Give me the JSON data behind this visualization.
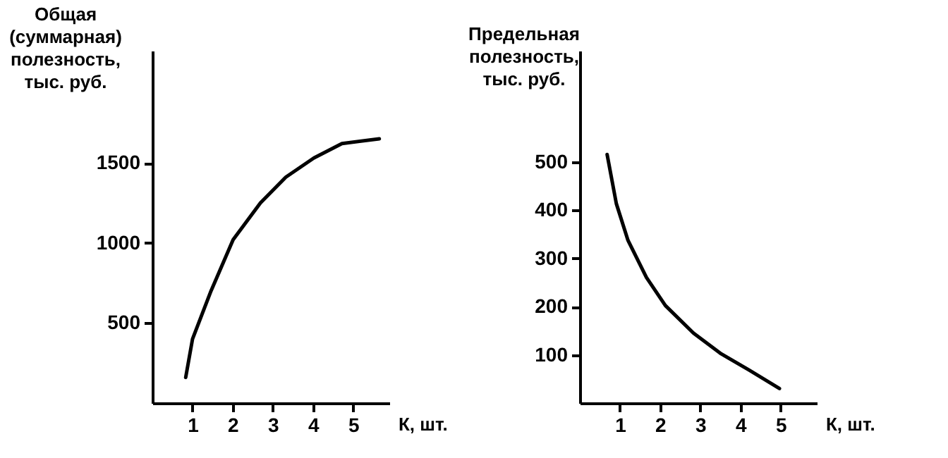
{
  "chart_data": [
    {
      "type": "line",
      "ylabel": "Общая\n(суммарная)\nполезность,\nтыс. руб.",
      "xlabel": "К, шт.",
      "series": [
        {
          "color": "#000000",
          "x": [
            0.83,
            1.0,
            1.46,
            2.01,
            2.69,
            3.32,
            4.02,
            4.72,
            5.65
          ],
          "values": [
            160,
            400,
            700,
            1020,
            1250,
            1410,
            1530,
            1620,
            1650
          ]
        }
      ],
      "xlim": [
        0,
        5.9
      ],
      "xticks": [
        1,
        2,
        3,
        4,
        5
      ],
      "ylim": [
        0,
        2200
      ],
      "yticks": [
        500,
        1000,
        1500
      ],
      "grid": false,
      "legend": false,
      "marker": "none",
      "line_style": "solid"
    },
    {
      "type": "line",
      "ylabel": "Предельная\nполезность,\nтыс. руб.",
      "xlabel": "К, шт.",
      "series": [
        {
          "color": "#000000",
          "x": [
            0.68,
            0.91,
            1.2,
            1.66,
            2.13,
            2.83,
            3.52,
            4.22,
            4.97
          ],
          "values": [
            515,
            413,
            337,
            260,
            202,
            145,
            102,
            68,
            30
          ]
        }
      ],
      "xlim": [
        0,
        5.9
      ],
      "xticks": [
        1,
        2,
        3,
        4,
        5
      ],
      "ylim": [
        0,
        730
      ],
      "yticks": [
        100,
        200,
        300,
        400,
        500
      ],
      "grid": false,
      "legend": false,
      "marker": "none",
      "line_style": "solid"
    }
  ]
}
